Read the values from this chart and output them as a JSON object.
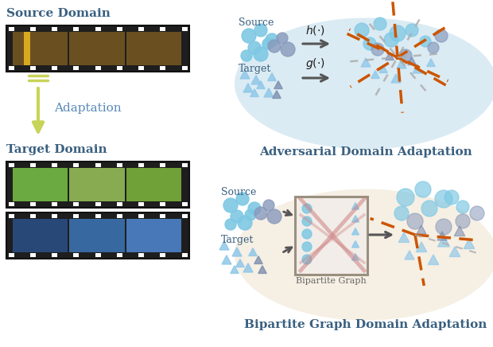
{
  "fig_width": 6.2,
  "fig_height": 4.36,
  "dpi": 100,
  "bg_color": "#ffffff",
  "source_domain_title": "Source Domain",
  "target_domain_title": "Target Domain",
  "adaptation_label": "Adaptation",
  "top_diagram_title": "Adversarial Domain Adaptation",
  "bottom_diagram_title": "Bipartite Graph Domain Adaptation",
  "ellipse1_color": "#d5e8f2",
  "ellipse2_color": "#f5ede0",
  "src_circle_light": "#7ec8e3",
  "src_circle_dark": "#8899bb",
  "tgt_tri_light": "#90c8e8",
  "tgt_tri_dark": "#7888aa",
  "orange_color": "#cc5500",
  "gray_color": "#aaaaaa",
  "arrow_color": "#555555",
  "text_color_blue": "#3a6080",
  "text_color_dark": "#1a1a1a",
  "adapt_arrow_color": "#c8d458",
  "adapt_text_color": "#5888b8",
  "film_bg": "#1e1e1e",
  "film_border": "#111111",
  "film_hole": "#ffffff",
  "source_img_color": "#7a6030",
  "target_img1_color": "#70a040",
  "target_img2_color": "#3060a0",
  "bipartite_box_bg": "#f2ede8",
  "bipartite_box_edge": "#9a9080",
  "salmon_cross": "#cc8080"
}
